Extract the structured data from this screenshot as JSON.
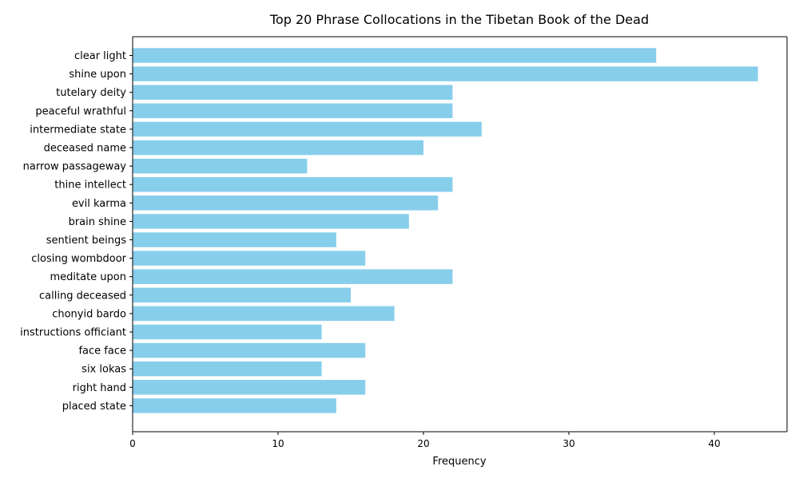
{
  "chart_data": {
    "type": "bar",
    "orientation": "horizontal",
    "title": "Top 20 Phrase Collocations in the Tibetan Book of the Dead",
    "xlabel": "Frequency",
    "ylabel": "",
    "xlim": [
      0,
      45
    ],
    "xticks": [
      0,
      10,
      20,
      30,
      40
    ],
    "xtick_labels": [
      "0",
      "10",
      "20",
      "30",
      "40"
    ],
    "grid": false,
    "bar_color": "#87CEEB",
    "categories": [
      "clear light",
      "shine upon",
      "tutelary deity",
      "peaceful wrathful",
      "intermediate state",
      "deceased name",
      "narrow passageway",
      "thine intellect",
      "evil karma",
      "brain shine",
      "sentient beings",
      "closing wombdoor",
      "meditate upon",
      "calling deceased",
      "chonyid bardo",
      "instructions officiant",
      "face face",
      "six lokas",
      "right hand",
      "placed state"
    ],
    "values": [
      36,
      43,
      22,
      22,
      24,
      20,
      12,
      22,
      21,
      19,
      14,
      16,
      22,
      15,
      18,
      13,
      16,
      13,
      16,
      14
    ]
  }
}
